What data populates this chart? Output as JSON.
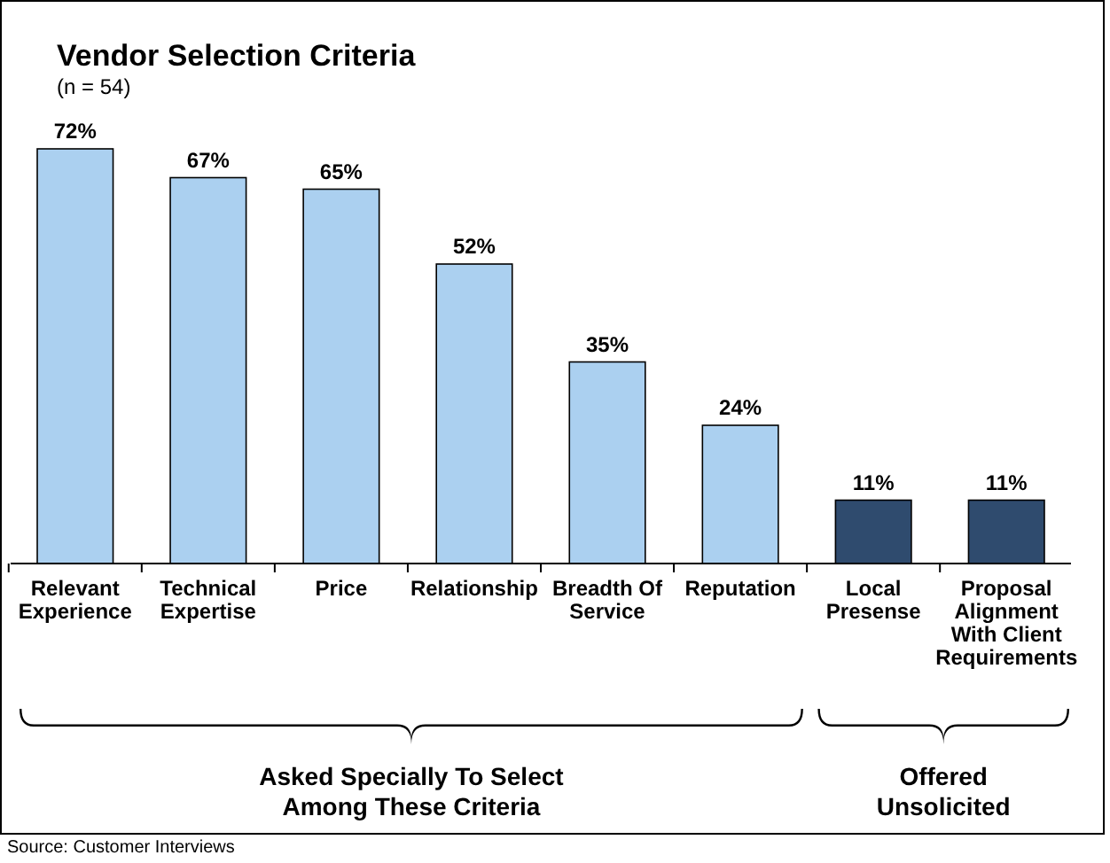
{
  "chart_data": {
    "type": "bar",
    "title": "Vendor Selection Criteria",
    "subtitle": "(n = 54)",
    "categories": [
      "Relevant Experience",
      "Technical Expertise",
      "Price",
      "Relationship",
      "Breadth Of Service",
      "Reputation",
      "Local Presense",
      "Proposal Alignment With Client Requirements"
    ],
    "values": [
      72,
      67,
      65,
      52,
      35,
      24,
      11,
      11
    ],
    "colors": [
      "#abd0f0",
      "#abd0f0",
      "#abd0f0",
      "#abd0f0",
      "#abd0f0",
      "#abd0f0",
      "#2f4b6e",
      "#2f4b6e"
    ],
    "value_labels": [
      "72%",
      "67%",
      "65%",
      "52%",
      "35%",
      "24%",
      "11%",
      "11%"
    ],
    "annotations": [
      "Asked Specially To Select Among These Criteria",
      "Offered Unsolicited",
      "Source:  Customer Interviews"
    ],
    "data_labels": false
  }
}
